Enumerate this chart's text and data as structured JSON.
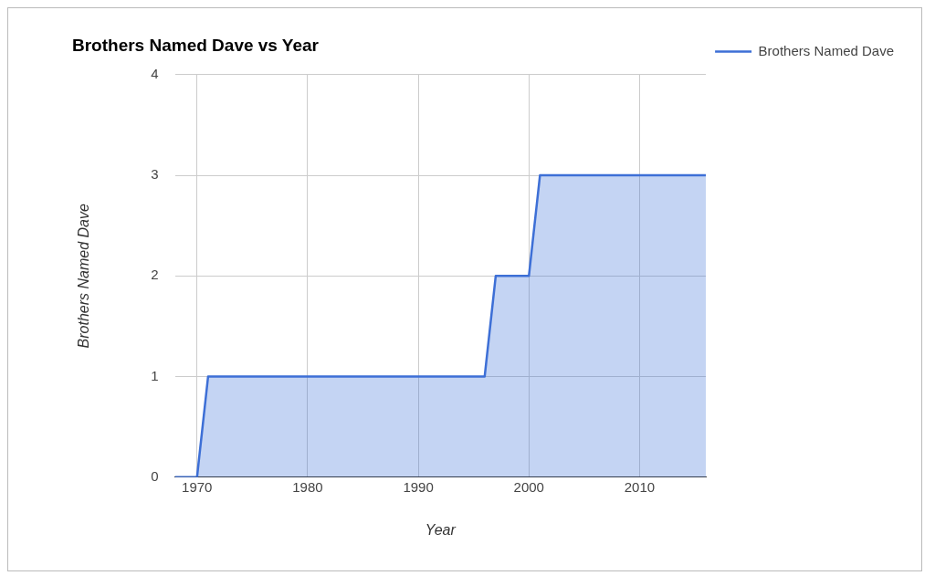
{
  "chart_data": {
    "type": "area",
    "title": "Brothers Named Dave vs Year",
    "xlabel": "Year",
    "ylabel": "Brothers Named Dave",
    "x": [
      1968,
      1970,
      1971,
      1996,
      1997,
      2000,
      2001,
      2016
    ],
    "series": [
      {
        "name": "Brothers Named Dave",
        "color": "#3d6fd6",
        "values": [
          0,
          0,
          1,
          1,
          2,
          2,
          3,
          3
        ]
      }
    ],
    "xlim": [
      1968,
      2016
    ],
    "xticks": [
      1970,
      1980,
      1990,
      2000,
      2010
    ],
    "ylim": [
      0,
      4
    ],
    "yticks": [
      0,
      1,
      2,
      3,
      4
    ],
    "grid": true,
    "legend": "top right",
    "marker": "none",
    "line_style": "solid"
  }
}
